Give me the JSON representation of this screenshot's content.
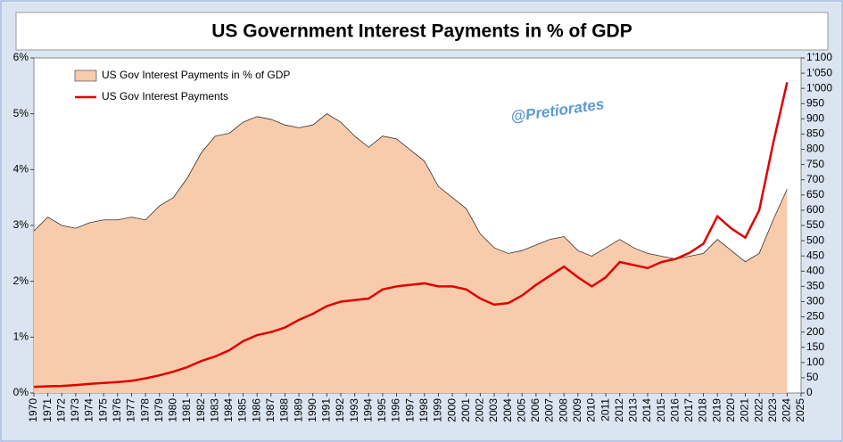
{
  "chart_data": {
    "type": "area-line",
    "title": "US Government Interest Payments in % of GDP",
    "annotation": "@Pretiorates",
    "x": [
      1970,
      1971,
      1972,
      1973,
      1974,
      1975,
      1976,
      1977,
      1978,
      1979,
      1980,
      1981,
      1982,
      1983,
      1984,
      1985,
      1986,
      1987,
      1988,
      1989,
      1990,
      1991,
      1992,
      1993,
      1994,
      1995,
      1996,
      1997,
      1998,
      1999,
      2000,
      2001,
      2002,
      2003,
      2004,
      2005,
      2006,
      2007,
      2008,
      2009,
      2010,
      2011,
      2012,
      2013,
      2014,
      2015,
      2016,
      2017,
      2018,
      2019,
      2020,
      2021,
      2022,
      2023,
      2024
    ],
    "series": [
      {
        "name": "US Gov Interest Payments in % of GDP",
        "color": "#f8cbad",
        "axis": "y",
        "values": [
          2.9,
          3.15,
          3.0,
          2.95,
          3.05,
          3.1,
          3.1,
          3.15,
          3.1,
          3.35,
          3.5,
          3.85,
          4.3,
          4.6,
          4.65,
          4.85,
          4.95,
          4.9,
          4.8,
          4.75,
          4.8,
          5.0,
          4.85,
          4.6,
          4.4,
          4.6,
          4.55,
          4.35,
          4.15,
          3.7,
          3.5,
          3.3,
          2.85,
          2.6,
          2.5,
          2.55,
          2.65,
          2.75,
          2.8,
          2.55,
          2.45,
          2.6,
          2.75,
          2.6,
          2.5,
          2.45,
          2.4,
          2.45,
          2.5,
          2.75,
          2.55,
          2.35,
          2.5,
          3.1,
          3.65
        ]
      },
      {
        "name": "US Gov Interest Payments",
        "color": "#e00000",
        "axis": "y2",
        "values": [
          20,
          22,
          23,
          26,
          30,
          33,
          36,
          40,
          48,
          58,
          70,
          85,
          105,
          120,
          140,
          170,
          190,
          200,
          215,
          240,
          260,
          285,
          300,
          305,
          310,
          340,
          350,
          355,
          360,
          350,
          350,
          340,
          310,
          290,
          295,
          320,
          355,
          385,
          415,
          380,
          350,
          380,
          430,
          420,
          410,
          430,
          440,
          460,
          490,
          580,
          540,
          510,
          600,
          820,
          1020
        ]
      }
    ],
    "xlim": [
      1970,
      2025
    ],
    "xticks": [
      1970,
      1971,
      1972,
      1973,
      1974,
      1975,
      1976,
      1977,
      1978,
      1979,
      1980,
      1981,
      1982,
      1983,
      1984,
      1985,
      1986,
      1987,
      1988,
      1989,
      1990,
      1991,
      1992,
      1993,
      1994,
      1995,
      1996,
      1997,
      1998,
      1999,
      2000,
      2001,
      2002,
      2003,
      2004,
      2005,
      2006,
      2007,
      2008,
      2009,
      2010,
      2011,
      2012,
      2013,
      2014,
      2015,
      2016,
      2017,
      2018,
      2019,
      2020,
      2021,
      2022,
      2023,
      2024,
      2025
    ],
    "ylim": [
      0,
      6
    ],
    "yticks": [
      {
        "value": 0,
        "label": "0%"
      },
      {
        "value": 1,
        "label": "1%"
      },
      {
        "value": 2,
        "label": "2%"
      },
      {
        "value": 3,
        "label": "3%"
      },
      {
        "value": 4,
        "label": "4%"
      },
      {
        "value": 5,
        "label": "5%"
      },
      {
        "value": 6,
        "label": "6%"
      }
    ],
    "y2lim": [
      0,
      1100
    ],
    "y2ticks": [
      0,
      50,
      100,
      150,
      200,
      250,
      300,
      350,
      400,
      450,
      500,
      550,
      600,
      650,
      700,
      750,
      800,
      850,
      900,
      950,
      {
        "value": 1000,
        "label": "1'000"
      },
      {
        "value": 1050,
        "label": "1'050"
      },
      {
        "value": 1100,
        "label": "1'100"
      }
    ],
    "legend": "upper left"
  }
}
